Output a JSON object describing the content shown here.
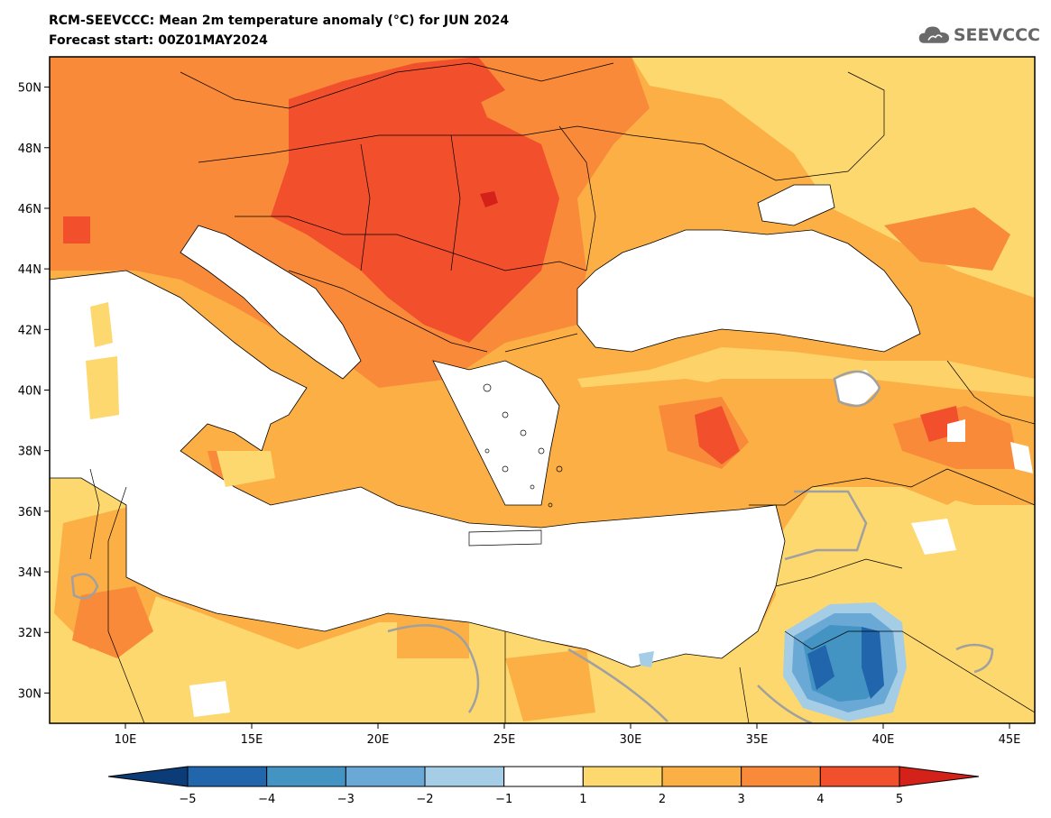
{
  "header": {
    "title": "RCM-SEEVCCC: Mean 2m temperature anomaly (°C) for JUN 2024",
    "subtitle": "Forecast start: 00Z01MAY2024"
  },
  "logo": {
    "text": "SEEVCCC",
    "icon": "cloud-icon"
  },
  "map": {
    "type": "filled-contour-map",
    "lon_range": [
      7,
      46
    ],
    "lat_range": [
      29,
      51
    ],
    "lat_ticks": [
      "30N",
      "32N",
      "34N",
      "36N",
      "38N",
      "40N",
      "42N",
      "44N",
      "46N",
      "48N",
      "50N"
    ],
    "lon_ticks": [
      "10E",
      "15E",
      "20E",
      "25E",
      "30E",
      "35E",
      "40E",
      "45E"
    ]
  },
  "colorbar": {
    "levels": [
      "−5",
      "−4",
      "−3",
      "−2",
      "−1",
      "1",
      "2",
      "3",
      "4",
      "5"
    ],
    "colors": [
      "#0c3c78",
      "#2166ac",
      "#4393c3",
      "#6aa9d6",
      "#a6cde6",
      "#ffffff",
      "#fdd86e",
      "#fbaf44",
      "#f88a3a",
      "#f2502c",
      "#d4221b"
    ]
  }
}
